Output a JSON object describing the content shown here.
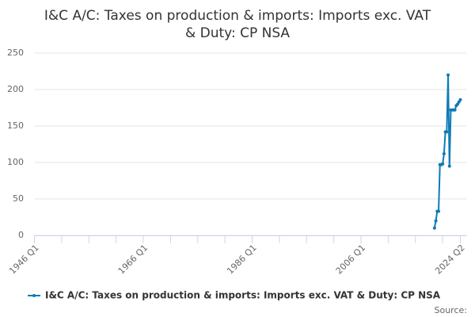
{
  "chart_data": {
    "type": "line",
    "title_lines": [
      "I&C A/C: Taxes on production & imports: Imports exc. VAT",
      "& Duty: CP NSA"
    ],
    "x": [
      "2019 Q3",
      "2019 Q4",
      "2020 Q1",
      "2020 Q2",
      "2020 Q3",
      "2020 Q4",
      "2021 Q1",
      "2021 Q2",
      "2021 Q3",
      "2021 Q4",
      "2022 Q1",
      "2022 Q2",
      "2022 Q3",
      "2022 Q4",
      "2023 Q1",
      "2023 Q2",
      "2023 Q3",
      "2023 Q4",
      "2024 Q1",
      "2024 Q2"
    ],
    "series": [
      {
        "name": "I&C A/C: Taxes on production & imports: Imports exc. VAT & Duty: CP NSA",
        "color": "#0e7bb5",
        "values": [
          10,
          20,
          33,
          33,
          97,
          97,
          98,
          112,
          142,
          142,
          220,
          95,
          172,
          172,
          172,
          172,
          178,
          180,
          183,
          186
        ]
      }
    ],
    "xlim": [
      "1946 Q1",
      "2024 Q2"
    ],
    "xticks": [
      "1946 Q1",
      "1966 Q1",
      "1986 Q1",
      "2006 Q1",
      "2024 Q2"
    ],
    "ylim": [
      0,
      250
    ],
    "yticks": [
      0,
      50,
      100,
      150,
      200,
      250
    ],
    "grid": true,
    "source_label": "Source:"
  }
}
